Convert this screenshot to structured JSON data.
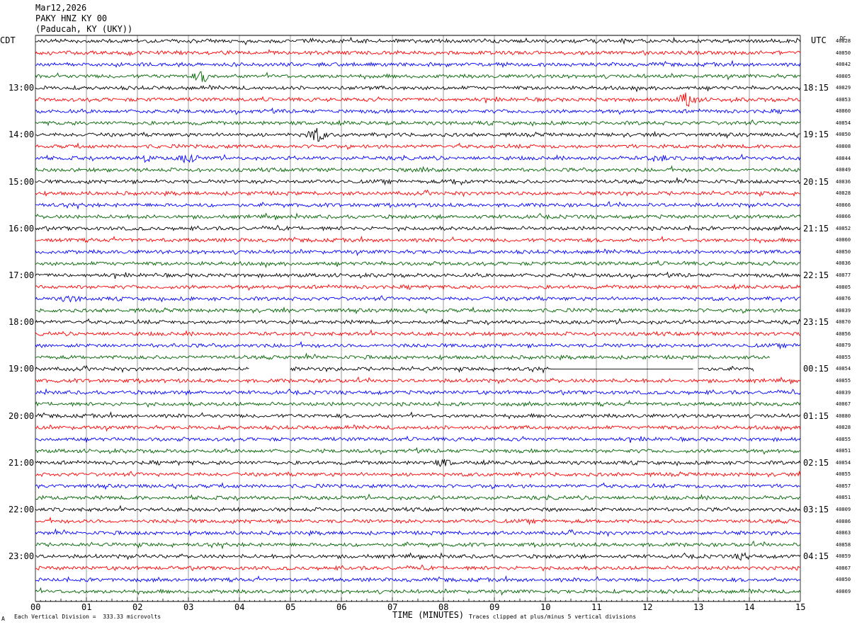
{
  "header": {
    "date": "Mar12,2026",
    "station": "PAKY HNZ KY 00",
    "location": "(Paducah, KY (UKY))"
  },
  "left_zone_label": "CDT",
  "right_zone_label": "UTC",
  "dc_label": "DC",
  "footer": {
    "scale_note": "Each Vertical Division =  333.33 microvolts",
    "xlabel": "TIME (MINUTES)",
    "clip_note": "Traces clipped at plus/minus 5 vertical divisions",
    "corner_mark": "A"
  },
  "colors": {
    "black": "#000000",
    "red": "#ff0000",
    "blue": "#0000ff",
    "green": "#006400",
    "grid": "#808080"
  },
  "chart_data": {
    "type": "line",
    "title": "",
    "xlabel": "TIME (MINUTES)",
    "xlim": [
      0,
      15
    ],
    "x_ticks": [
      "00",
      "01",
      "02",
      "03",
      "04",
      "05",
      "06",
      "07",
      "08",
      "09",
      "10",
      "11",
      "12",
      "13",
      "14",
      "15"
    ],
    "trace_color_cycle": [
      "black",
      "red",
      "blue",
      "green"
    ],
    "hours_left": [
      "13:00",
      "14:00",
      "15:00",
      "16:00",
      "17:00",
      "18:00",
      "19:00",
      "20:00",
      "21:00",
      "22:00",
      "23:00"
    ],
    "hours_right": [
      "18:15",
      "19:15",
      "20:15",
      "21:15",
      "22:15",
      "23:15",
      "00:15",
      "01:15",
      "02:15",
      "03:15",
      "04:15"
    ],
    "dc_offsets": [
      "40828",
      "40850",
      "40842",
      "40805",
      "40829",
      "40853",
      "40860",
      "40854",
      "40850",
      "40808",
      "40844",
      "40849",
      "40836",
      "40828",
      "40866",
      "40866",
      "40852",
      "40860",
      "40850",
      "40836",
      "40877",
      "40805",
      "40876",
      "40839",
      "40870",
      "40856",
      "40879",
      "40855",
      "40854",
      "40855",
      "40839",
      "40867",
      "40880",
      "40828",
      "40855",
      "40851",
      "40854",
      "40855",
      "40857",
      "40851",
      "40809",
      "40886",
      "40863",
      "40858",
      "40859",
      "40867",
      "40850",
      "40869"
    ],
    "events": [
      {
        "trace": 3,
        "minute": 3.3,
        "amplitude": 3.0
      },
      {
        "trace": 5,
        "minute": 12.8,
        "amplitude": 4.0
      },
      {
        "trace": 8,
        "minute": 5.5,
        "amplitude": 4.0
      },
      {
        "trace": 10,
        "minute": 2.1,
        "amplitude": 2.0
      },
      {
        "trace": 10,
        "minute": 3.0,
        "amplitude": 2.2
      },
      {
        "trace": 10,
        "minute": 12.2,
        "amplitude": 2.0
      },
      {
        "trace": 11,
        "minute": 7.7,
        "amplitude": 2.0
      },
      {
        "trace": 12,
        "minute": 8.3,
        "amplitude": 1.5
      },
      {
        "trace": 22,
        "minute": 0.7,
        "amplitude": 1.5
      },
      {
        "trace": 36,
        "minute": 8.0,
        "amplitude": 1.6
      },
      {
        "trace": 44,
        "minute": 13.9,
        "amplitude": 1.4
      }
    ],
    "gaps": [
      {
        "trace": 27,
        "start": 14.4,
        "end": 15.0
      },
      {
        "trace": 28,
        "start": 4.2,
        "end": 5.0,
        "flat": false
      },
      {
        "trace": 28,
        "start": 10.1,
        "end": 12.9,
        "flat": true
      },
      {
        "trace": 28,
        "start": 12.9,
        "end": 13.0,
        "flat": false
      },
      {
        "trace": 28,
        "start": 14.1,
        "end": 15.0,
        "flat": false
      }
    ]
  }
}
